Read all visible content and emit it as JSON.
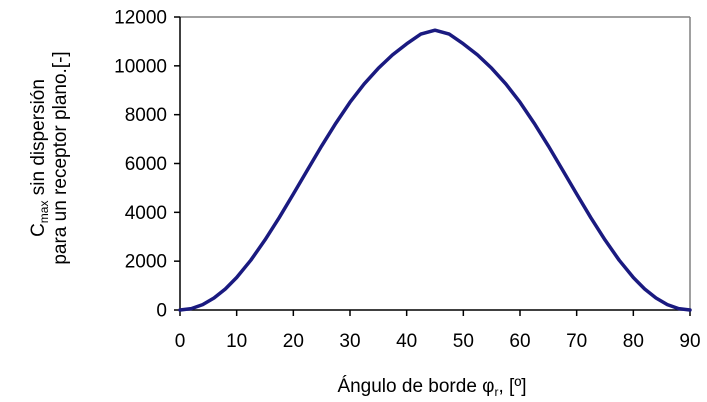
{
  "chart_data": {
    "type": "line",
    "xlabel": {
      "main": "Ángulo de borde ",
      "symbol": "φ",
      "sub": "r",
      "tail": ", [º]"
    },
    "ylabel": {
      "line1": {
        "main": "C",
        "sub": "max",
        "tail": " sin dispersión"
      },
      "line2": "para un receptor plano.[-]"
    },
    "xlim": [
      0,
      90
    ],
    "ylim": [
      0,
      12000
    ],
    "xticks": [
      "0",
      "10",
      "20",
      "30",
      "40",
      "50",
      "60",
      "70",
      "80",
      "90"
    ],
    "yticks": [
      "0",
      "2000",
      "4000",
      "6000",
      "8000",
      "10000",
      "12000"
    ],
    "grid": false,
    "series": [
      {
        "color": "#1a1a80",
        "x": [
          0,
          2,
          4,
          6,
          8,
          10,
          12.5,
          15,
          17.5,
          20,
          22.5,
          25,
          27.5,
          30,
          32.5,
          35,
          37.5,
          40,
          42.5,
          45,
          47.5,
          50,
          52.5,
          55,
          57.5,
          60,
          62.5,
          65,
          67.5,
          70,
          72.5,
          75,
          77.5,
          80,
          82,
          84,
          86,
          88,
          90
        ],
        "y": [
          0,
          55,
          220,
          490,
          860,
          1330,
          2040,
          2870,
          3780,
          4750,
          5740,
          6720,
          7650,
          8510,
          9260,
          9900,
          10450,
          10900,
          11300,
          11460,
          11300,
          10900,
          10450,
          9900,
          9260,
          8510,
          7650,
          6720,
          5740,
          4750,
          3780,
          2870,
          2040,
          1330,
          860,
          490,
          220,
          55,
          0
        ]
      }
    ]
  }
}
